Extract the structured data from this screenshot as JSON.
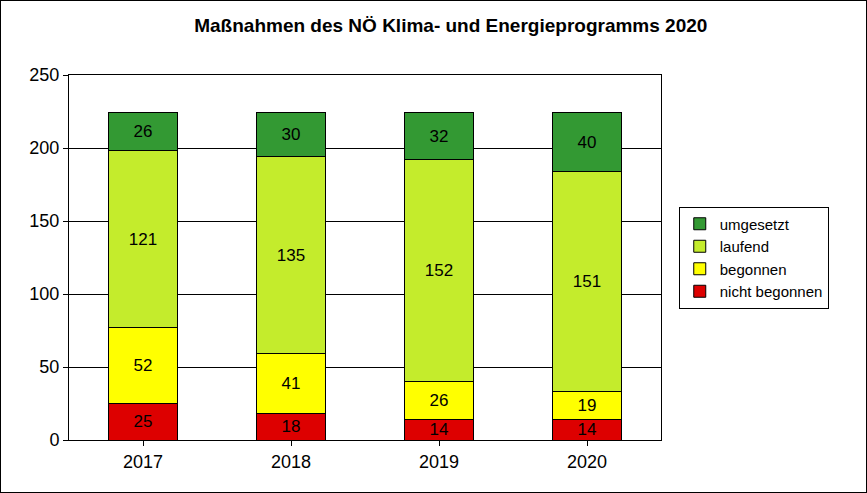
{
  "chart_data": {
    "type": "bar",
    "title": "Maßnahmen des NÖ Klima- und Energieprogramms 2020",
    "categories": [
      "2017",
      "2018",
      "2019",
      "2020"
    ],
    "stacked": true,
    "data_labels": true,
    "grid": true,
    "legend": "right",
    "ylim": [
      0,
      250
    ],
    "yticks": [
      0,
      50,
      100,
      150,
      200,
      250
    ],
    "series": [
      {
        "name": "nicht begonnen",
        "color": "#dd0000",
        "values": [
          25,
          18,
          14,
          14
        ]
      },
      {
        "name": "begonnen",
        "color": "#ffff00",
        "values": [
          52,
          41,
          26,
          19
        ]
      },
      {
        "name": "laufend",
        "color": "#c4ec2c",
        "values": [
          121,
          135,
          152,
          151
        ]
      },
      {
        "name": "umgesetzt",
        "color": "#339933",
        "values": [
          26,
          30,
          32,
          40
        ]
      }
    ]
  }
}
